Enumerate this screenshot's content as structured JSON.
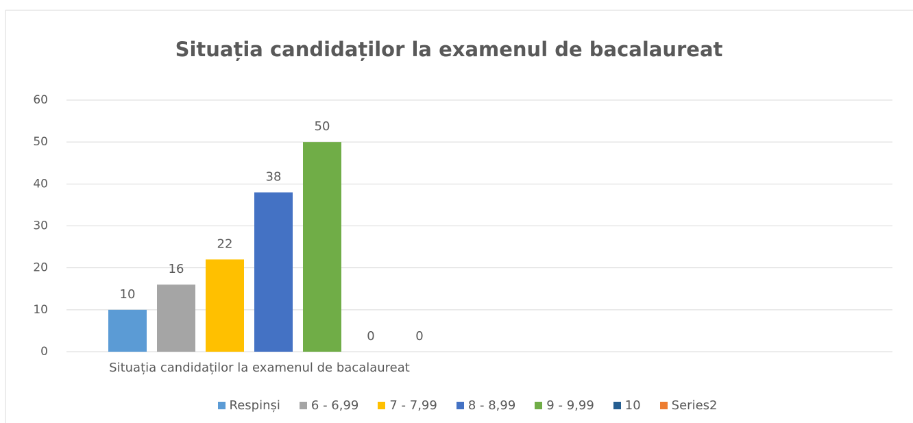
{
  "chart_data": {
    "type": "bar",
    "title": "Situația candidaților la examenul de bacalaureat",
    "categories": [
      "Situația candidaților la examenul de bacalaureat"
    ],
    "series": [
      {
        "name": "Respinși",
        "color": "#5b9bd5",
        "values": [
          10
        ]
      },
      {
        "name": "6 - 6,99",
        "color": "#a5a5a5",
        "values": [
          16
        ]
      },
      {
        "name": "7 - 7,99",
        "color": "#ffc000",
        "values": [
          22
        ]
      },
      {
        "name": "8 - 8,99",
        "color": "#4472c4",
        "values": [
          38
        ]
      },
      {
        "name": "9 - 9,99",
        "color": "#70ad47",
        "values": [
          50
        ]
      },
      {
        "name": "10",
        "color": "#255e91",
        "values": [
          0
        ]
      },
      {
        "name": "Series2",
        "color": "#ed7d31",
        "values": [
          0
        ]
      }
    ],
    "ylim": [
      0,
      60
    ],
    "yticks": [
      0,
      10,
      20,
      30,
      40,
      50,
      60
    ],
    "grid": true,
    "legend": "bottom"
  }
}
